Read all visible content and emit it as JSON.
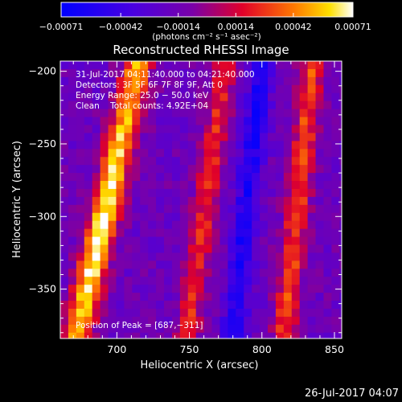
{
  "chart_data": {
    "type": "heatmap",
    "title": "Reconstructed RHESSI Image",
    "xlabel": "Heliocentric X (arcsec)",
    "ylabel": "Heliocentric Y (arcsec)",
    "xlim": [
      661,
      855
    ],
    "ylim": [
      -384,
      -193
    ],
    "x_ticks": [
      700,
      750,
      800,
      850
    ],
    "x_tick_labels": [
      "700",
      "750",
      "800",
      "850"
    ],
    "y_ticks": [
      -200,
      -250,
      -300,
      -350
    ],
    "y_tick_labels": [
      "−200",
      "−250",
      "−300",
      "−350"
    ],
    "colorbar": {
      "min": -0.00071,
      "max": 0.00071,
      "ticks": [
        -0.00071,
        -0.00042,
        -0.00014,
        0.00014,
        0.00042,
        0.00071
      ],
      "tick_labels": [
        "−0.00071",
        "−0.00042",
        "−0.00014",
        "0.00014",
        "0.00042",
        "0.00071"
      ],
      "units_label": "(photons cm⁻² s⁻¹ asec⁻²)",
      "colormap": "blue-purple-red-orange-yellow-white"
    },
    "annotations": {
      "time_range": "31-Jul-2017 04:11:40.000 to 04:21:40.000",
      "detectors": "Detectors: 3F 5F 6F 7F 8F 9F, Att 0",
      "energy_range": "Energy Range: 25.0 − 50.0 keV",
      "method_counts": "Clean    Total counts: 4.92E+04",
      "peak_position": "Position of Peak = [687,−311]"
    },
    "peak": {
      "x": 687,
      "y": -311
    },
    "bands": [
      {
        "name": "bright ridge",
        "x_at_top": 715,
        "x_at_bottom": 672,
        "value": 0.00068
      },
      {
        "name": "warm ridge",
        "x_at_top": 775,
        "x_at_bottom": 748,
        "value": 0.00024
      },
      {
        "name": "negative trough",
        "x_at_top": 800,
        "x_at_bottom": 780,
        "value": -0.00058
      },
      {
        "name": "warm ridge",
        "x_at_top": 835,
        "x_at_bottom": 815,
        "value": 0.0003
      }
    ]
  },
  "footer": {
    "timestamp": "26-Jul-2017 04:07"
  },
  "colors": {
    "background": "#000000",
    "text": "#ffffff",
    "colormap_low": "#0000ff",
    "colormap_mid": "#7000b0",
    "colormap_high": "#ffffff"
  }
}
